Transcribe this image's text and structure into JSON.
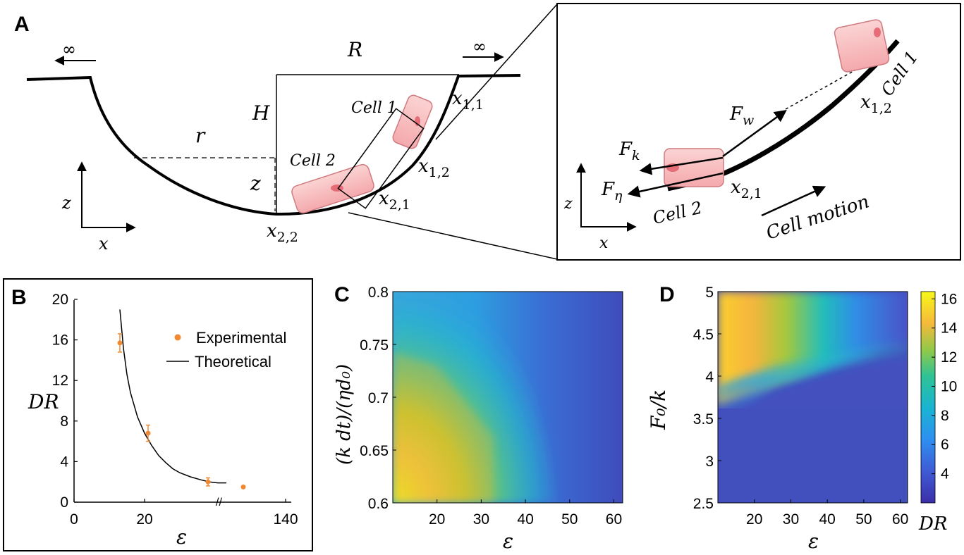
{
  "panel_A": {
    "label": "A",
    "infinity_left": "∞",
    "infinity_right": "∞",
    "R": "R",
    "H": "H",
    "r": "r",
    "z": "z",
    "cell1": "Cell 1",
    "cell2": "Cell 2",
    "x11": "x",
    "x11_sub": "1,1",
    "x12": "x",
    "x12_sub": "1,2",
    "x21": "x",
    "x21_sub": "2,1",
    "x22": "x",
    "x22_sub": "2,2",
    "axis_z": "z",
    "axis_x": "x",
    "inset": {
      "cell1": "Cell 1",
      "cell2": "Cell 2",
      "x12": "x",
      "x12_sub": "1,2",
      "x21": "x",
      "x21_sub": "2,1",
      "Fw": "F",
      "Fw_sub": "w",
      "Fk": "F",
      "Fk_sub": "k",
      "Feta": "F",
      "Feta_sub": "η",
      "motion": "Cell motion",
      "axis_z": "z",
      "axis_x": "x"
    }
  },
  "panel_B": {
    "label": "B",
    "ylabel": "DR",
    "xlabel": "ε",
    "legend_experimental": "Experimental",
    "legend_theoretical": "Theoretical",
    "x_ticks": [
      "0",
      "20",
      "140"
    ],
    "y_ticks": [
      "0",
      "4",
      "8",
      "12",
      "16",
      "20"
    ],
    "axis_break": "//",
    "colors": {
      "experimental": "#f08a32",
      "theoretical": "#000000"
    }
  },
  "panel_C": {
    "label": "C",
    "ylabel": "(k dt)/(ηd₀)",
    "xlabel": "ε",
    "x_ticks": [
      "20",
      "30",
      "40",
      "50",
      "60"
    ],
    "y_ticks": [
      "0.6",
      "0.65",
      "0.7",
      "0.75",
      "0.8"
    ]
  },
  "panel_D": {
    "label": "D",
    "ylabel": "F₀/k",
    "xlabel": "ε",
    "x_ticks": [
      "20",
      "30",
      "40",
      "50",
      "60"
    ],
    "y_ticks": [
      "2.5",
      "3",
      "3.5",
      "4",
      "4.5",
      "5"
    ],
    "colorbar_ticks": [
      "4",
      "6",
      "8",
      "10",
      "12",
      "14",
      "16"
    ],
    "colorbar_label": "DR"
  },
  "chart_data": [
    {
      "type": "scatter",
      "panel": "B",
      "xlabel": "ε",
      "ylabel": "DR",
      "xlim": [
        0,
        140
      ],
      "ylim": [
        0,
        20
      ],
      "series": [
        {
          "name": "Experimental",
          "x": [
            13,
            21,
            38,
            48
          ],
          "y": [
            15.7,
            6.8,
            2.0,
            1.5
          ],
          "yerr": [
            0.9,
            0.8,
            0.4,
            0.1
          ]
        },
        {
          "name": "Theoretical",
          "x": [
            13,
            14,
            15,
            16,
            18,
            20,
            22,
            24,
            26,
            28,
            30,
            33,
            36,
            40,
            44,
            48
          ],
          "y": [
            19.0,
            15.2,
            12.6,
            10.8,
            8.4,
            6.8,
            5.6,
            4.6,
            3.9,
            3.3,
            2.9,
            2.5,
            2.2,
            2.0,
            1.9,
            1.9
          ]
        }
      ]
    },
    {
      "type": "heatmap",
      "panel": "C",
      "xlabel": "ε",
      "ylabel": "(k dt)/(ηd₀)",
      "xlim": [
        10,
        62
      ],
      "ylim": [
        0.6,
        0.8
      ],
      "colorscale_range": [
        2,
        16.5
      ]
    },
    {
      "type": "heatmap",
      "panel": "D",
      "xlabel": "ε",
      "ylabel": "F₀/k",
      "xlim": [
        10,
        62
      ],
      "ylim": [
        2.5,
        5
      ],
      "colorbar": {
        "min": 2,
        "max": 16.5,
        "ticks": [
          4,
          6,
          8,
          10,
          12,
          14,
          16
        ],
        "label": "DR"
      }
    }
  ]
}
